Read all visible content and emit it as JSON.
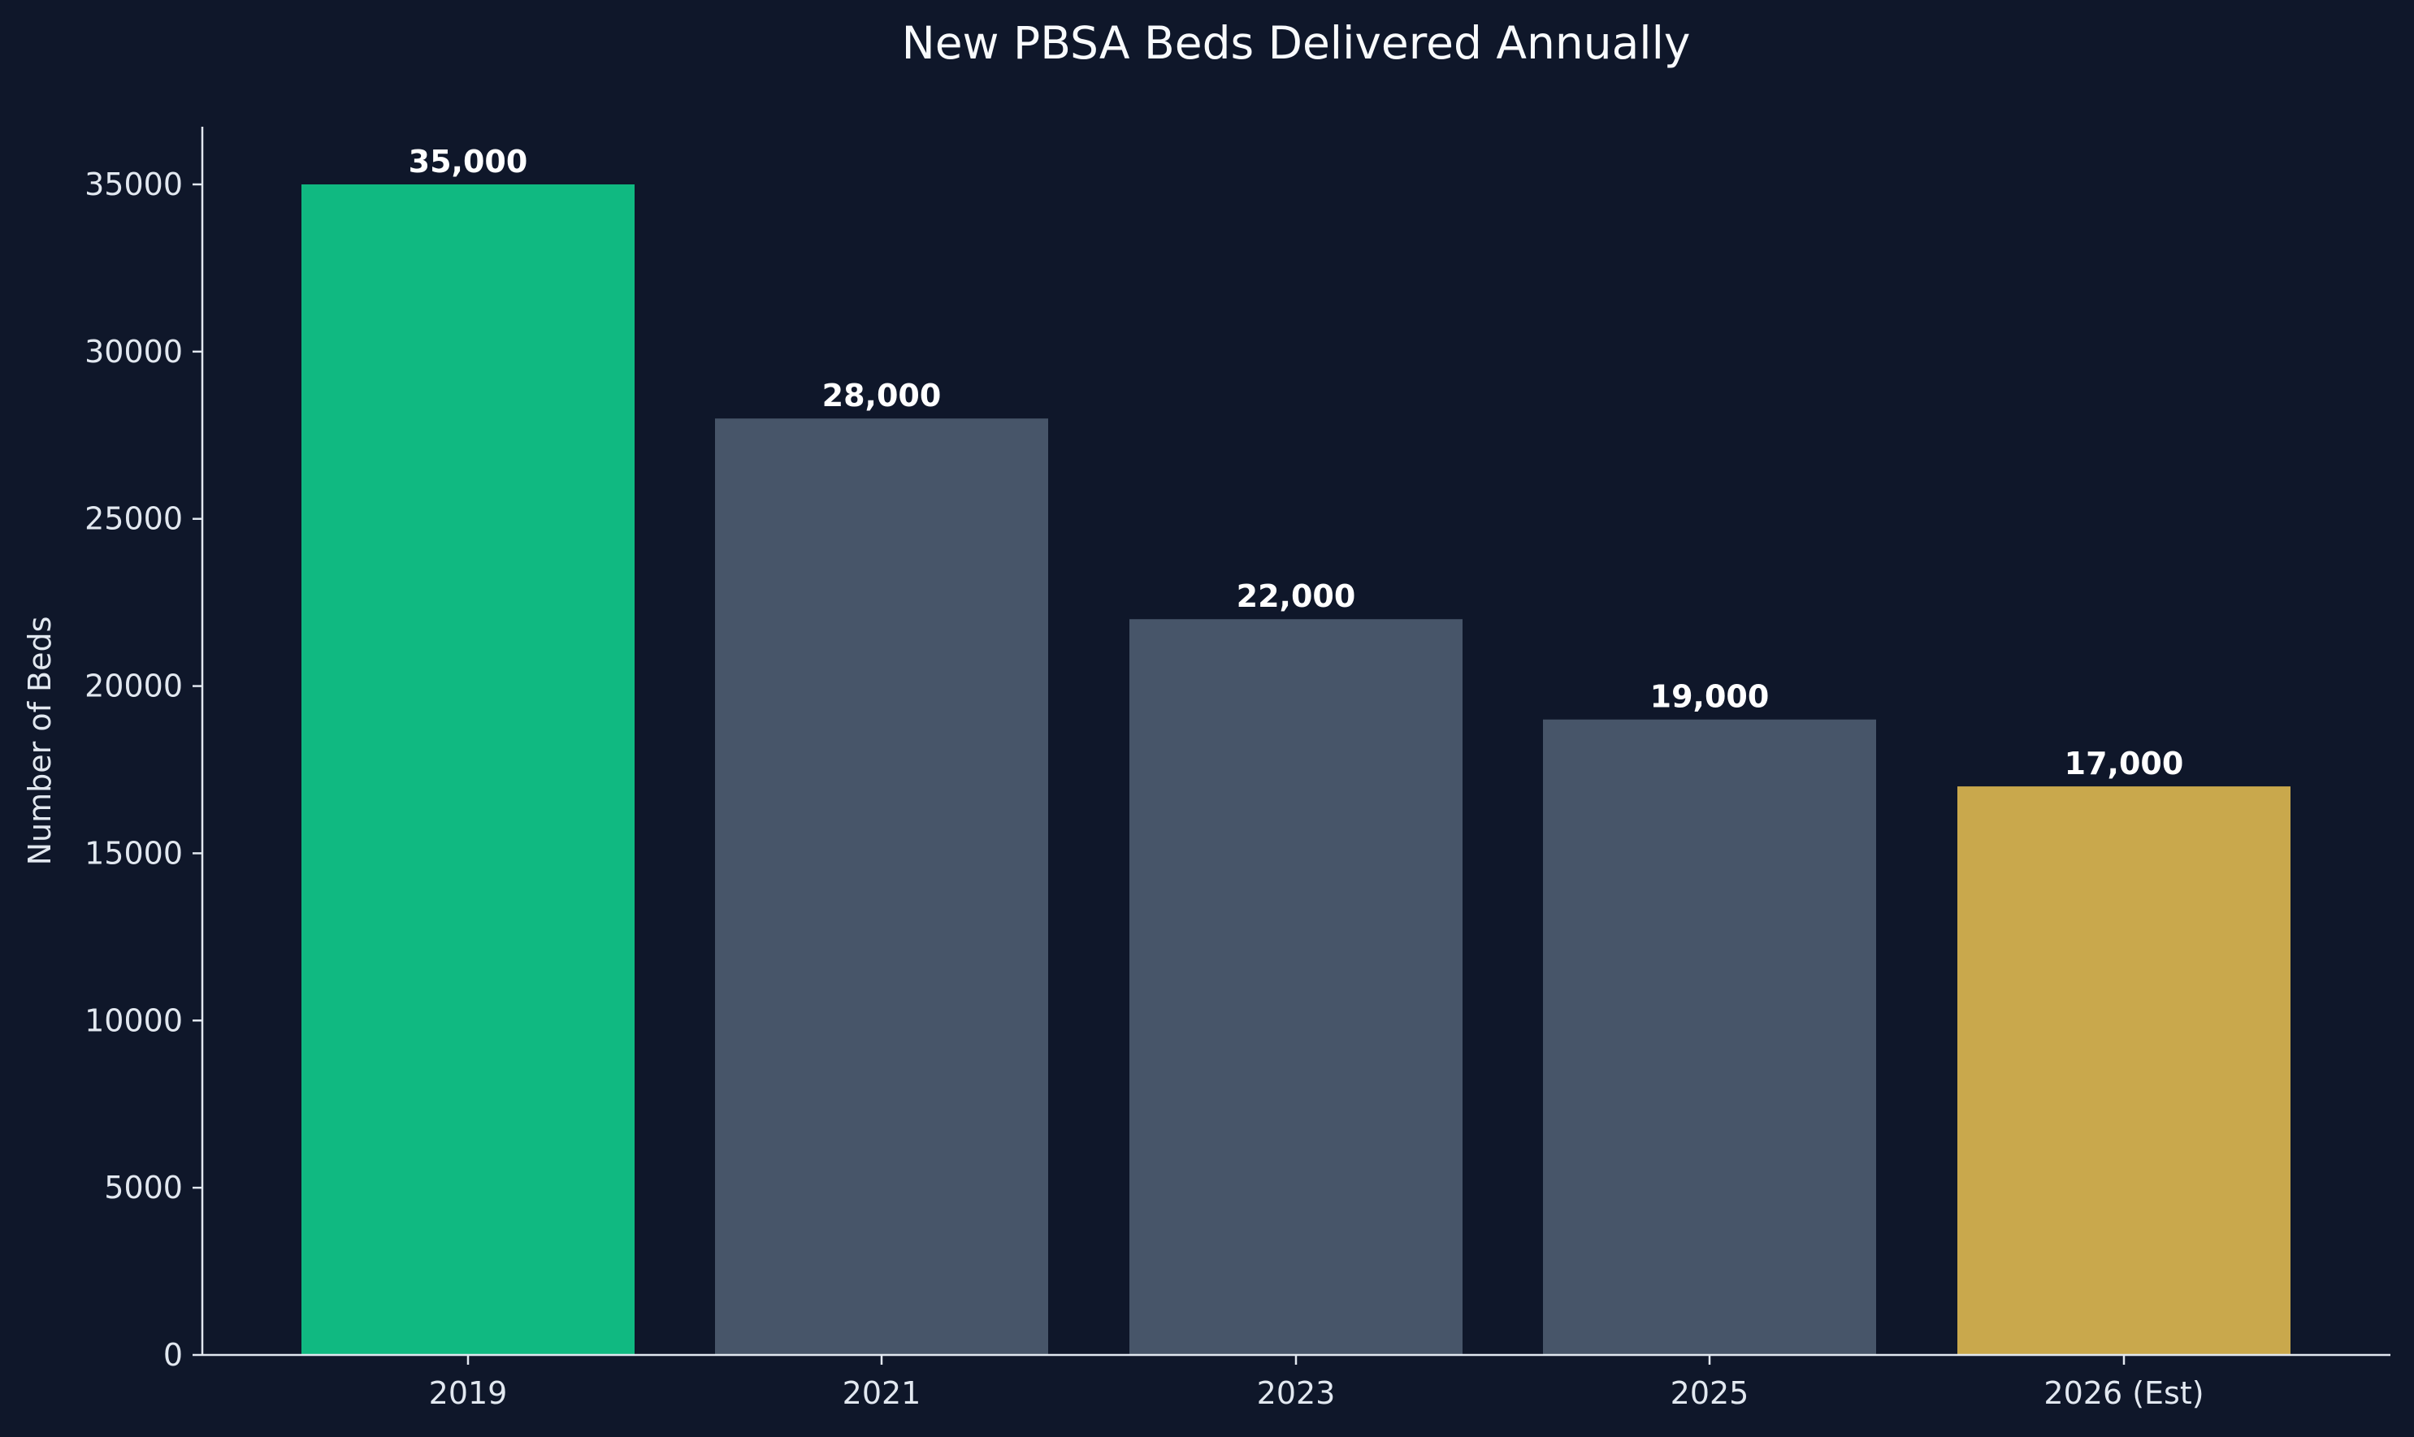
{
  "chart_data": {
    "type": "bar",
    "title": "New PBSA Beds Delivered Annually",
    "xlabel": "",
    "ylabel": "Number of Beds",
    "categories": [
      "2019",
      "2021",
      "2023",
      "2025",
      "2026 (Est)"
    ],
    "values": [
      35000,
      28000,
      22000,
      19000,
      17000
    ],
    "data_labels": [
      "35,000",
      "28,000",
      "22,000",
      "19,000",
      "17,000"
    ],
    "bar_colors": [
      "#10b981",
      "#475569",
      "#475569",
      "#475569",
      "#c9a84c"
    ],
    "ylim": [
      0,
      36800
    ],
    "yticks": [
      0,
      5000,
      10000,
      15000,
      20000,
      25000,
      30000,
      35000
    ],
    "ytick_labels": [
      "0",
      "5000",
      "10000",
      "15000",
      "20000",
      "25000",
      "30000",
      "35000"
    ],
    "grid": false,
    "legend": "none",
    "colors": {
      "background": "#0f172a",
      "axis": "#e2e8f0",
      "text": "#e2e8f0",
      "title": "#f8fafc",
      "data_label": "#ffffff"
    }
  }
}
